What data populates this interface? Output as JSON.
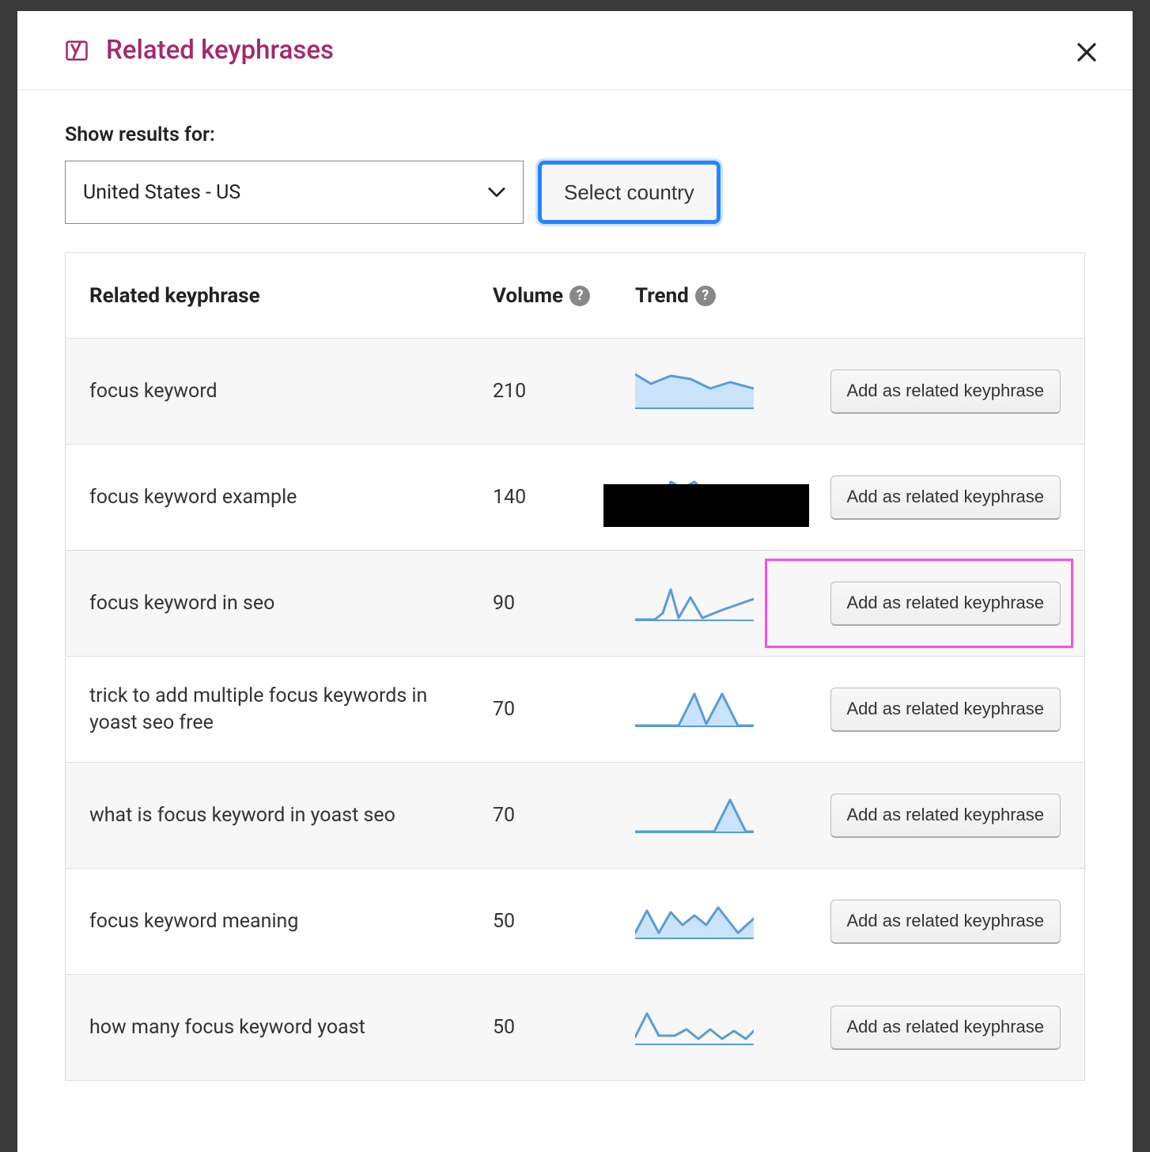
{
  "modal": {
    "title": "Related keyphrases"
  },
  "controls": {
    "label": "Show results for:",
    "selected_country": "United States - US",
    "button_label": "Select country"
  },
  "columns": {
    "keyphrase": "Related keyphrase",
    "volume": "Volume",
    "trend": "Trend"
  },
  "action_label": "Add as related keyphrase",
  "spark_style": {
    "stroke": "#5b9bd5",
    "fill": "#c9e3fb",
    "stroke_width": 3,
    "baseline_color": "#5b9bd5",
    "width": 150,
    "height": 48
  },
  "rows": [
    {
      "keyphrase": "focus keyword",
      "volume": "210",
      "trend_points": [
        0,
        4,
        20,
        16,
        45,
        6,
        70,
        10,
        95,
        22,
        120,
        14,
        150,
        22
      ],
      "trend_fill": true,
      "highlight": false
    },
    {
      "keyphrase": "focus keyword example",
      "volume": "140",
      "trend_points": [
        0,
        48,
        30,
        48,
        45,
        6,
        60,
        14,
        75,
        6,
        100,
        30,
        150,
        32
      ],
      "trend_fill": true,
      "highlight": false,
      "redact": true
    },
    {
      "keyphrase": "focus keyword in seo",
      "volume": "90",
      "trend_points": [
        0,
        46,
        25,
        46,
        35,
        38,
        45,
        8,
        55,
        44,
        70,
        18,
        85,
        44,
        110,
        34,
        150,
        20
      ],
      "trend_fill": false,
      "highlight": true
    },
    {
      "keyphrase": "trick to add multiple focus keywords in yoast seo free",
      "volume": "70",
      "trend_points": [
        0,
        46,
        55,
        46,
        75,
        6,
        90,
        44,
        110,
        6,
        130,
        46,
        150,
        46
      ],
      "trend_fill": true,
      "highlight": false
    },
    {
      "keyphrase": "what is focus keyword in yoast seo",
      "volume": "70",
      "trend_points": [
        0,
        46,
        100,
        46,
        120,
        6,
        140,
        46,
        150,
        46
      ],
      "trend_fill": true,
      "highlight": false
    },
    {
      "keyphrase": "focus keyword meaning",
      "volume": "50",
      "trend_points": [
        0,
        40,
        15,
        12,
        30,
        40,
        45,
        14,
        60,
        30,
        75,
        18,
        90,
        30,
        105,
        8,
        130,
        40,
        150,
        22
      ],
      "trend_fill": true,
      "highlight": false
    },
    {
      "keyphrase": "how many focus keyword yoast",
      "volume": "50",
      "trend_points": [
        0,
        38,
        15,
        8,
        30,
        36,
        50,
        36,
        65,
        28,
        80,
        40,
        95,
        28,
        110,
        40,
        125,
        30,
        140,
        40,
        150,
        30
      ],
      "trend_fill": false,
      "highlight": false
    }
  ],
  "colors": {
    "brand": "#a4286a",
    "focus_ring": "#2684ff",
    "highlight": "#ff4fd8"
  }
}
